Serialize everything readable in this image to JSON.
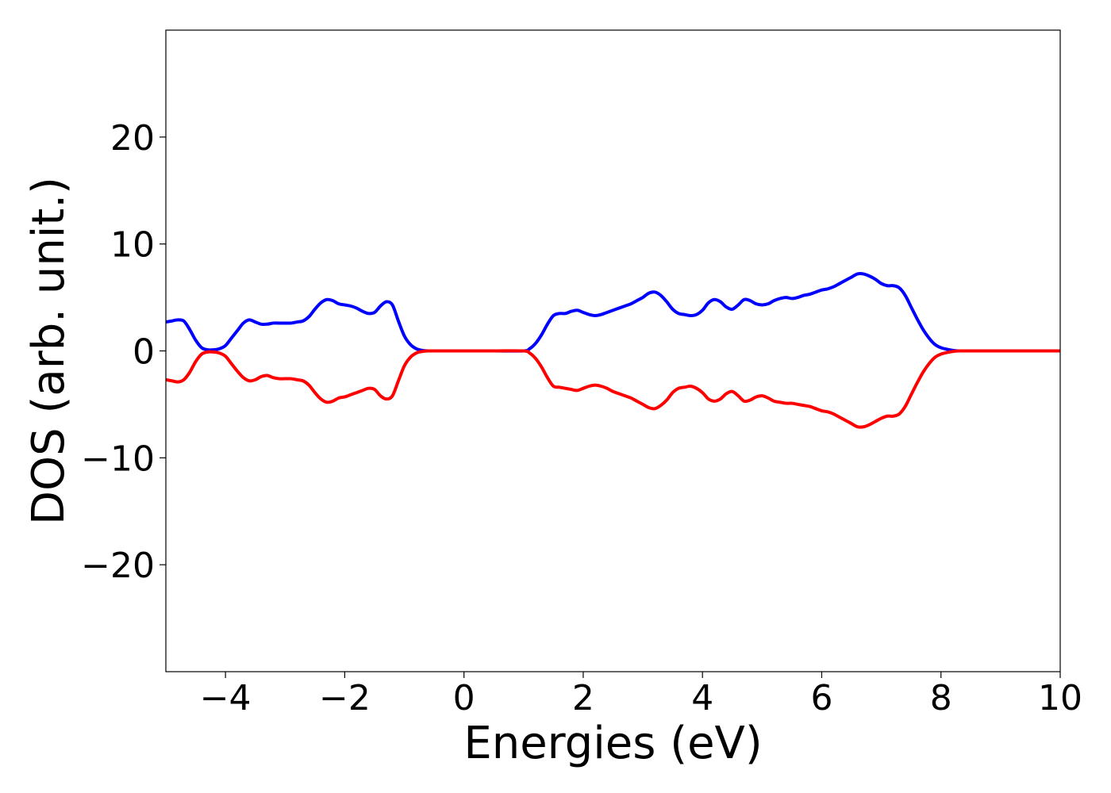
{
  "chart_data": {
    "type": "line",
    "title": "",
    "xlabel": "Energies (eV)",
    "ylabel": "DOS (arb. unit.)",
    "xlim": [
      -5,
      10
    ],
    "ylim": [
      -30,
      30
    ],
    "grid": false,
    "xticks": [
      -4,
      -2,
      0,
      2,
      4,
      6,
      8,
      10
    ],
    "xtick_labels": [
      "−4",
      "−2",
      "0",
      "2",
      "4",
      "6",
      "8",
      "10"
    ],
    "yticks": [
      -20,
      -10,
      0,
      10,
      20
    ],
    "ytick_labels": [
      "−20",
      "−10",
      "0",
      "10",
      "20"
    ],
    "colors": {
      "spin_up": "#0000ff",
      "spin_down": "#ff0000"
    },
    "series": [
      {
        "color": "#0000ff",
        "x": [
          -5.0,
          -4.9,
          -4.8,
          -4.7,
          -4.6,
          -4.5,
          -4.4,
          -4.3,
          -4.2,
          -4.1,
          -4.0,
          -3.9,
          -3.8,
          -3.7,
          -3.6,
          -3.5,
          -3.4,
          -3.3,
          -3.2,
          -3.1,
          -3.0,
          -2.9,
          -2.8,
          -2.7,
          -2.6,
          -2.5,
          -2.4,
          -2.3,
          -2.2,
          -2.1,
          -2.0,
          -1.9,
          -1.8,
          -1.7,
          -1.6,
          -1.5,
          -1.4,
          -1.3,
          -1.2,
          -1.1,
          -1.0,
          -0.9,
          -0.8,
          -0.7,
          -0.6,
          -0.5,
          -0.4,
          -0.3,
          0.0,
          0.5,
          1.0,
          1.1,
          1.2,
          1.3,
          1.4,
          1.5,
          1.6,
          1.7,
          1.8,
          1.9,
          2.0,
          2.1,
          2.2,
          2.3,
          2.4,
          2.5,
          2.6,
          2.7,
          2.8,
          2.9,
          3.0,
          3.1,
          3.2,
          3.3,
          3.4,
          3.5,
          3.6,
          3.7,
          3.8,
          3.9,
          4.0,
          4.1,
          4.2,
          4.3,
          4.4,
          4.5,
          4.6,
          4.7,
          4.8,
          4.9,
          5.0,
          5.1,
          5.2,
          5.3,
          5.4,
          5.5,
          5.6,
          5.7,
          5.8,
          5.9,
          6.0,
          6.1,
          6.2,
          6.3,
          6.4,
          6.5,
          6.6,
          6.7,
          6.8,
          6.9,
          7.0,
          7.1,
          7.2,
          7.3,
          7.4,
          7.5,
          7.6,
          7.7,
          7.8,
          7.9,
          8.0,
          8.1,
          8.2,
          8.3,
          8.5,
          9.0,
          9.5,
          10.0
        ],
        "values": [
          2.7,
          2.8,
          2.9,
          2.8,
          2.0,
          1.0,
          0.3,
          0.1,
          0.1,
          0.2,
          0.5,
          1.2,
          1.9,
          2.6,
          2.9,
          2.7,
          2.5,
          2.5,
          2.6,
          2.6,
          2.6,
          2.6,
          2.7,
          2.8,
          3.2,
          3.9,
          4.5,
          4.8,
          4.7,
          4.4,
          4.3,
          4.2,
          4.0,
          3.7,
          3.5,
          3.6,
          4.2,
          4.6,
          4.3,
          2.8,
          1.4,
          0.6,
          0.2,
          0.05,
          0.0,
          0.0,
          0.0,
          0.0,
          0.0,
          0.0,
          0.0,
          0.2,
          0.7,
          1.5,
          2.5,
          3.3,
          3.5,
          3.5,
          3.7,
          3.8,
          3.6,
          3.4,
          3.3,
          3.4,
          3.6,
          3.8,
          4.0,
          4.2,
          4.4,
          4.7,
          5.0,
          5.4,
          5.5,
          5.2,
          4.6,
          3.9,
          3.5,
          3.4,
          3.3,
          3.4,
          3.8,
          4.5,
          4.8,
          4.6,
          4.1,
          3.9,
          4.3,
          4.8,
          4.7,
          4.4,
          4.3,
          4.4,
          4.7,
          4.9,
          5.0,
          4.9,
          5.0,
          5.2,
          5.3,
          5.5,
          5.7,
          5.8,
          6.0,
          6.3,
          6.6,
          6.9,
          7.2,
          7.2,
          7.0,
          6.7,
          6.3,
          6.1,
          6.1,
          5.9,
          5.2,
          4.1,
          3.0,
          2.0,
          1.2,
          0.6,
          0.3,
          0.15,
          0.05,
          0.0,
          0.0,
          0.0,
          0.0,
          0.0
        ]
      },
      {
        "color": "#ff0000",
        "x": [
          -5.0,
          -4.9,
          -4.8,
          -4.7,
          -4.6,
          -4.5,
          -4.4,
          -4.3,
          -4.2,
          -4.1,
          -4.0,
          -3.9,
          -3.8,
          -3.7,
          -3.6,
          -3.5,
          -3.4,
          -3.3,
          -3.2,
          -3.1,
          -3.0,
          -2.9,
          -2.8,
          -2.7,
          -2.6,
          -2.5,
          -2.4,
          -2.3,
          -2.2,
          -2.1,
          -2.0,
          -1.9,
          -1.8,
          -1.7,
          -1.6,
          -1.5,
          -1.4,
          -1.3,
          -1.2,
          -1.1,
          -1.0,
          -0.9,
          -0.8,
          -0.7,
          -0.6,
          -0.5,
          -0.4,
          -0.3,
          0.0,
          0.5,
          1.0,
          1.1,
          1.2,
          1.3,
          1.4,
          1.5,
          1.6,
          1.7,
          1.8,
          1.9,
          2.0,
          2.1,
          2.2,
          2.3,
          2.4,
          2.5,
          2.6,
          2.7,
          2.8,
          2.9,
          3.0,
          3.1,
          3.2,
          3.3,
          3.4,
          3.5,
          3.6,
          3.7,
          3.8,
          3.9,
          4.0,
          4.1,
          4.2,
          4.3,
          4.4,
          4.5,
          4.6,
          4.7,
          4.8,
          4.9,
          5.0,
          5.1,
          5.2,
          5.3,
          5.4,
          5.5,
          5.6,
          5.7,
          5.8,
          5.9,
          6.0,
          6.1,
          6.2,
          6.3,
          6.4,
          6.5,
          6.6,
          6.7,
          6.8,
          6.9,
          7.0,
          7.1,
          7.2,
          7.3,
          7.4,
          7.5,
          7.6,
          7.7,
          7.8,
          7.9,
          8.0,
          8.1,
          8.2,
          8.3,
          8.5,
          9.0,
          9.5,
          10.0
        ],
        "values": [
          -2.7,
          -2.8,
          -2.9,
          -2.7,
          -2.0,
          -1.0,
          -0.3,
          -0.1,
          -0.1,
          -0.2,
          -0.5,
          -1.2,
          -1.9,
          -2.5,
          -2.8,
          -2.7,
          -2.4,
          -2.3,
          -2.5,
          -2.6,
          -2.6,
          -2.6,
          -2.7,
          -2.8,
          -3.2,
          -3.9,
          -4.5,
          -4.8,
          -4.7,
          -4.4,
          -4.3,
          -4.1,
          -3.9,
          -3.7,
          -3.5,
          -3.6,
          -4.2,
          -4.5,
          -4.2,
          -2.8,
          -1.4,
          -0.6,
          -0.2,
          -0.05,
          0.0,
          0.0,
          0.0,
          0.0,
          0.0,
          0.0,
          0.0,
          -0.2,
          -0.7,
          -1.5,
          -2.5,
          -3.3,
          -3.4,
          -3.5,
          -3.6,
          -3.7,
          -3.5,
          -3.3,
          -3.2,
          -3.3,
          -3.5,
          -3.8,
          -4.0,
          -4.2,
          -4.4,
          -4.7,
          -5.0,
          -5.3,
          -5.4,
          -5.1,
          -4.6,
          -3.9,
          -3.5,
          -3.4,
          -3.3,
          -3.5,
          -3.9,
          -4.5,
          -4.7,
          -4.5,
          -4.0,
          -3.8,
          -4.2,
          -4.7,
          -4.6,
          -4.3,
          -4.2,
          -4.4,
          -4.7,
          -4.8,
          -4.9,
          -4.9,
          -5.0,
          -5.1,
          -5.2,
          -5.4,
          -5.6,
          -5.7,
          -5.9,
          -6.2,
          -6.5,
          -6.8,
          -7.1,
          -7.1,
          -6.9,
          -6.6,
          -6.3,
          -6.1,
          -6.1,
          -5.9,
          -5.2,
          -4.1,
          -3.0,
          -2.0,
          -1.2,
          -0.6,
          -0.3,
          -0.15,
          -0.05,
          0.0,
          0.0,
          0.0,
          0.0,
          0.0
        ]
      }
    ]
  }
}
